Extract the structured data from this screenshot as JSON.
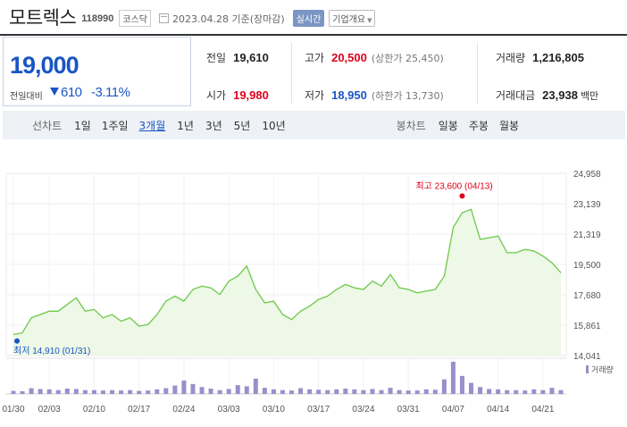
{
  "header": {
    "company_name": "모트렉스",
    "code": "118990",
    "market": "코스닥",
    "date_text": "2023.04.28 기준(장마감)",
    "realtime_label": "실시간",
    "overview_label": "기업개요"
  },
  "price": {
    "current": "19,000",
    "change_label": "전일대비",
    "change_value": "610",
    "change_pct": "-3.11%"
  },
  "info": {
    "prev_close": {
      "label": "전일",
      "value": "19,610"
    },
    "high": {
      "label": "고가",
      "value": "20,500",
      "sub": "(상한가 25,450)"
    },
    "volume": {
      "label": "거래량",
      "value": "1,216,805"
    },
    "open": {
      "label": "시가",
      "value": "19,980"
    },
    "low": {
      "label": "저가",
      "value": "18,950",
      "sub": "(하한가 13,730)"
    },
    "trade_value": {
      "label": "거래대금",
      "value": "23,938",
      "unit": "백만"
    }
  },
  "period_bar": {
    "line_label": "선차트",
    "line_options": [
      "1일",
      "1주일",
      "3개월",
      "1년",
      "3년",
      "5년",
      "10년"
    ],
    "selected": "3개월",
    "candle_label": "봉차트",
    "candle_options": [
      "일봉",
      "주봉",
      "월봉"
    ]
  },
  "colors": {
    "up": "#e0001b",
    "down": "#1a56c4",
    "line": "#6cc94a",
    "fill": "#edf8e6",
    "volume": "#9a8fcc"
  },
  "chart_data": {
    "type": "area",
    "y_ticks": [
      "24,958",
      "23,139",
      "21,319",
      "19,500",
      "17,680",
      "15,861",
      "14,041"
    ],
    "ylim": [
      14041,
      24958
    ],
    "x_tick_labels": [
      "01/30",
      "02/03",
      "02/10",
      "02/17",
      "02/24",
      "03/03",
      "03/10",
      "03/17",
      "03/24",
      "03/31",
      "04/07",
      "04/14",
      "04/21"
    ],
    "x_tick_index": [
      0,
      4,
      9,
      14,
      19,
      24,
      29,
      34,
      39,
      44,
      49,
      54,
      59
    ],
    "values": [
      15300,
      15400,
      16300,
      16500,
      16700,
      16700,
      17100,
      17500,
      16700,
      16800,
      16300,
      16500,
      16100,
      16300,
      15800,
      15900,
      16500,
      17300,
      17600,
      17300,
      18000,
      18200,
      18100,
      17700,
      18500,
      18800,
      19400,
      18000,
      17200,
      17300,
      16500,
      16200,
      16700,
      17000,
      17400,
      17600,
      18000,
      18300,
      18100,
      18000,
      18500,
      18200,
      18900,
      18100,
      18000,
      17800,
      17900,
      18000,
      18800,
      21700,
      22600,
      22800,
      21000,
      21100,
      21200,
      20200,
      20200,
      20400,
      20300,
      20000,
      19600,
      19000
    ],
    "volumes": [
      0.8,
      0.7,
      1.5,
      1.3,
      1.2,
      1.0,
      1.4,
      1.3,
      1.0,
      1.0,
      0.9,
      1.0,
      0.9,
      1.0,
      0.8,
      0.9,
      1.2,
      1.5,
      2.2,
      3.5,
      2.6,
      1.8,
      1.4,
      1.0,
      1.3,
      2.3,
      2.0,
      4.0,
      1.6,
      1.2,
      1.0,
      0.9,
      1.5,
      1.2,
      1.1,
      1.0,
      1.2,
      1.4,
      1.2,
      1.0,
      1.3,
      1.0,
      1.6,
      1.0,
      0.9,
      0.9,
      1.2,
      1.1,
      3.8,
      8.4,
      4.7,
      2.9,
      1.8,
      1.3,
      1.2,
      1.0,
      1.0,
      0.9,
      1.2,
      1.0,
      1.6,
      1.0
    ],
    "high_label": "최고 23,600 (04/13)",
    "high_index": 50,
    "high_value": 23600,
    "low_label": "최저 14,910 (01/31)",
    "low_index": 1,
    "low_value": 14910,
    "volume_legend": "거래량"
  }
}
